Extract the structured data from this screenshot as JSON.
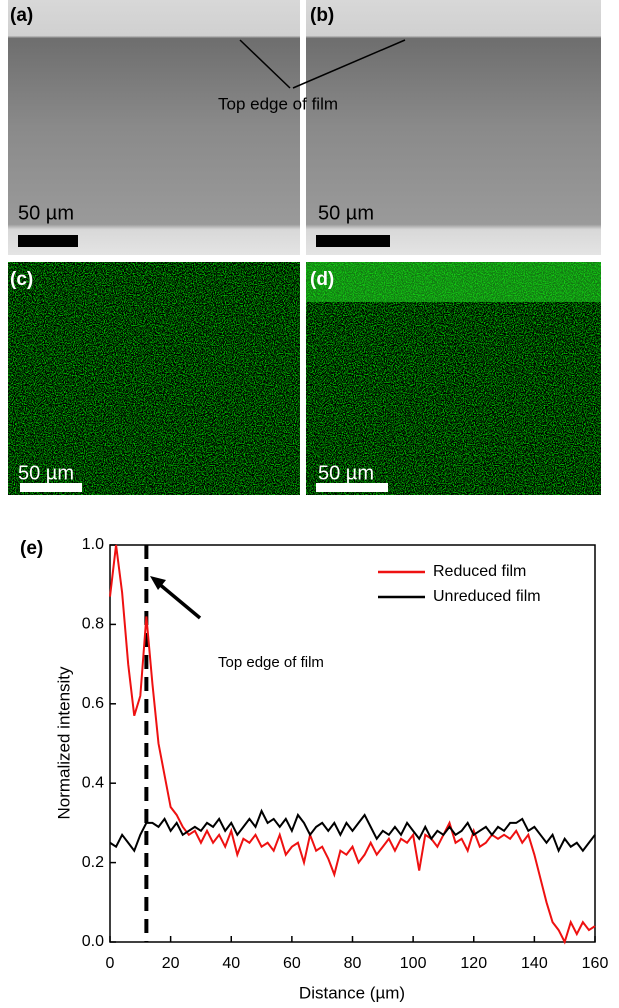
{
  "panels": {
    "labels": [
      "(a)",
      "(b)",
      "(c)",
      "(d)",
      "(e)"
    ],
    "scale_bars": [
      "50 µm",
      "50 µm",
      "50 µm",
      "50 µm"
    ],
    "annotation": "Top edge of film"
  },
  "chart_data": {
    "type": "line",
    "x_label": "Distance (µm)",
    "y_label": "Normalized intensity",
    "annotation": "Top edge of film",
    "vline": 12,
    "xlim": [
      0,
      160
    ],
    "ylim": [
      0,
      1
    ],
    "xticks": [
      0,
      20,
      40,
      60,
      80,
      100,
      120,
      140,
      160
    ],
    "yticks": [
      {
        "value": 0,
        "label": "0.0"
      },
      0.2,
      0.4,
      0.6,
      0.8,
      {
        "value": 1,
        "label": "1.0"
      }
    ],
    "legend": "upper right",
    "x": [
      0,
      2,
      4,
      6,
      8,
      10,
      12,
      14,
      16,
      18,
      20,
      22,
      24,
      26,
      28,
      30,
      32,
      34,
      36,
      38,
      40,
      42,
      44,
      46,
      48,
      50,
      52,
      54,
      56,
      58,
      60,
      62,
      64,
      66,
      68,
      70,
      72,
      74,
      76,
      78,
      80,
      82,
      84,
      86,
      88,
      90,
      92,
      94,
      96,
      98,
      100,
      102,
      104,
      106,
      108,
      110,
      112,
      114,
      116,
      118,
      120,
      122,
      124,
      126,
      128,
      130,
      132,
      134,
      136,
      138,
      140,
      142,
      144,
      146,
      148,
      150,
      152,
      154,
      156,
      158,
      160
    ],
    "series": [
      {
        "name": "Reduced film",
        "color": "#ee1111",
        "values": [
          0.87,
          1.0,
          0.88,
          0.7,
          0.57,
          0.62,
          0.82,
          0.65,
          0.5,
          0.42,
          0.34,
          0.32,
          0.29,
          0.27,
          0.28,
          0.25,
          0.28,
          0.25,
          0.27,
          0.24,
          0.28,
          0.22,
          0.26,
          0.25,
          0.27,
          0.24,
          0.25,
          0.23,
          0.27,
          0.22,
          0.24,
          0.25,
          0.2,
          0.27,
          0.23,
          0.24,
          0.21,
          0.17,
          0.23,
          0.22,
          0.24,
          0.2,
          0.22,
          0.25,
          0.22,
          0.24,
          0.26,
          0.23,
          0.26,
          0.25,
          0.27,
          0.18,
          0.27,
          0.26,
          0.24,
          0.27,
          0.3,
          0.25,
          0.26,
          0.23,
          0.28,
          0.24,
          0.25,
          0.27,
          0.26,
          0.27,
          0.26,
          0.28,
          0.25,
          0.27,
          0.22,
          0.16,
          0.1,
          0.05,
          0.03,
          0.0,
          0.05,
          0.02,
          0.05,
          0.03,
          0.04
        ]
      },
      {
        "name": "Unreduced film",
        "color": "#000000",
        "values": [
          0.25,
          0.24,
          0.27,
          0.25,
          0.23,
          0.27,
          0.3,
          0.3,
          0.29,
          0.31,
          0.28,
          0.3,
          0.27,
          0.28,
          0.29,
          0.28,
          0.3,
          0.29,
          0.31,
          0.28,
          0.3,
          0.27,
          0.29,
          0.31,
          0.29,
          0.33,
          0.3,
          0.31,
          0.29,
          0.31,
          0.28,
          0.32,
          0.3,
          0.27,
          0.29,
          0.3,
          0.28,
          0.3,
          0.27,
          0.3,
          0.28,
          0.3,
          0.32,
          0.29,
          0.26,
          0.28,
          0.27,
          0.29,
          0.27,
          0.3,
          0.28,
          0.26,
          0.29,
          0.26,
          0.28,
          0.27,
          0.29,
          0.27,
          0.28,
          0.3,
          0.27,
          0.28,
          0.29,
          0.27,
          0.29,
          0.28,
          0.3,
          0.3,
          0.31,
          0.28,
          0.29,
          0.27,
          0.25,
          0.27,
          0.23,
          0.26,
          0.24,
          0.25,
          0.23,
          0.25,
          0.27
        ]
      }
    ]
  }
}
